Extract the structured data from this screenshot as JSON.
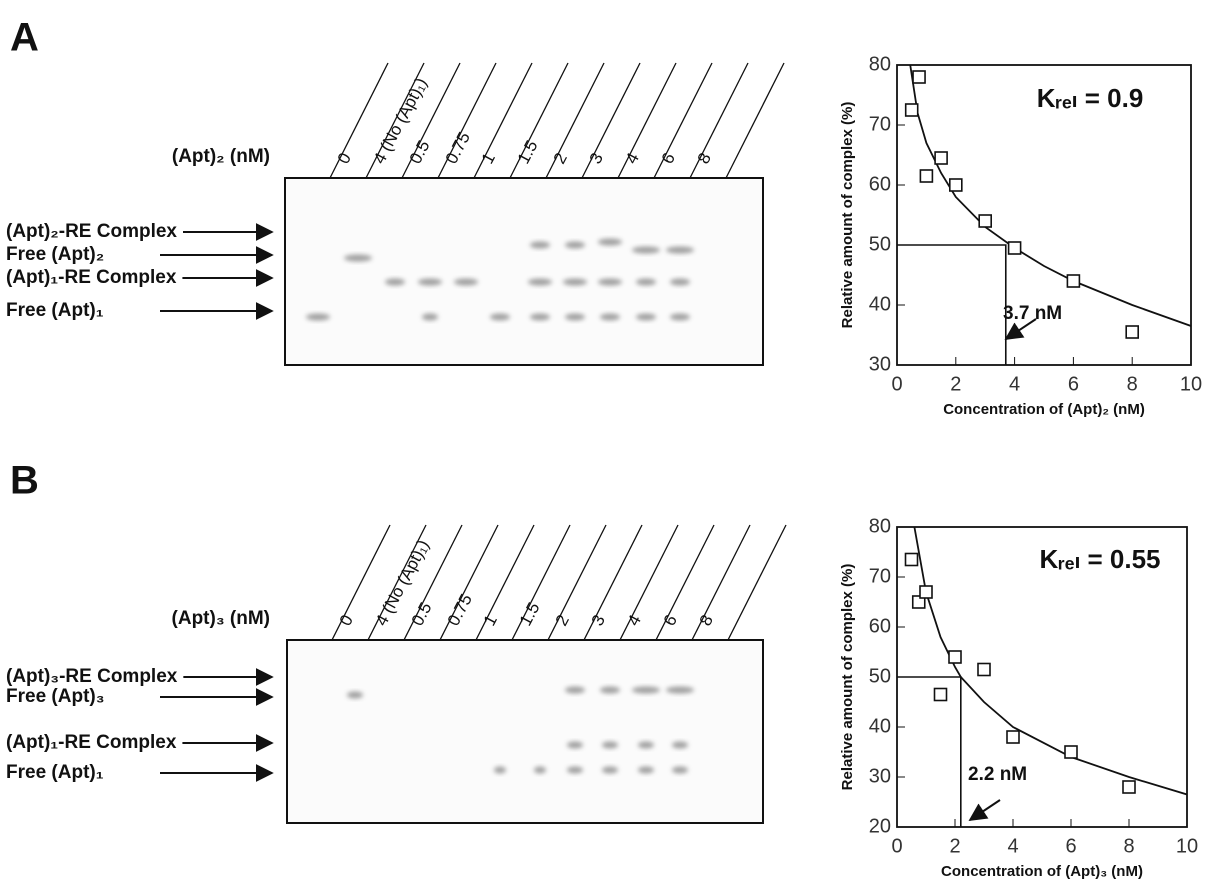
{
  "panel_labels": [
    "A",
    "B"
  ],
  "gels": [
    {
      "axis_label": "(Apt)₂ (nM)",
      "lanes": [
        "0",
        "4 (No (Apt)₁)",
        "0.5",
        "0.75",
        "1",
        "1.5",
        "2",
        "3",
        "4",
        "6",
        "8"
      ],
      "bands": [
        "(Apt)₂-RE Complex",
        "Free (Apt)₂",
        "(Apt)₁-RE Complex",
        "Free (Apt)₁"
      ]
    },
    {
      "axis_label": "(Apt)₃ (nM)",
      "lanes": [
        "0",
        "4 (No (Apt)₁)",
        "0.5",
        "0.75",
        "1",
        "1.5",
        "2",
        "3",
        "4",
        "6",
        "8"
      ],
      "bands": [
        "(Apt)₃-RE Complex",
        "Free (Apt)₃",
        "(Apt)₁-RE Complex",
        "Free (Apt)₁"
      ]
    }
  ],
  "chart_data": [
    {
      "type": "scatter",
      "xlabel": "Concentration of (Apt)₂  (nM)",
      "ylabel": "Relative amount of complex (%)",
      "k_label": "Kᵣₑₗ = 0.9",
      "annotation": "3.7 nM",
      "xlim": [
        0,
        10
      ],
      "ylim": [
        30,
        80
      ],
      "xticks": [
        0,
        2,
        4,
        6,
        8,
        10
      ],
      "yticks": [
        30,
        40,
        50,
        60,
        70,
        80
      ],
      "points": {
        "x": [
          0.5,
          0.75,
          1,
          1.5,
          2,
          3,
          4,
          6,
          8
        ],
        "y": [
          72.5,
          78,
          61.5,
          64.5,
          60,
          54,
          49.5,
          44,
          35.5
        ]
      },
      "fit": {
        "x": [
          0.45,
          0.7,
          1,
          1.5,
          2,
          3,
          4,
          5,
          6,
          8,
          10
        ],
        "y": [
          80,
          72,
          67,
          62,
          58,
          53,
          49.5,
          46.5,
          44,
          40,
          36.5
        ]
      },
      "reference": {
        "x": [
          0,
          3.7,
          3.7
        ],
        "y": [
          50,
          50,
          30
        ]
      }
    },
    {
      "type": "scatter",
      "xlabel": "Concentration of (Apt)₃  (nM)",
      "ylabel": "Relative amount of complex (%)",
      "k_label": "Kᵣₑₗ = 0.55",
      "annotation": "2.2 nM",
      "xlim": [
        0,
        10
      ],
      "ylim": [
        20,
        80
      ],
      "xticks": [
        0,
        2,
        4,
        6,
        8,
        10
      ],
      "yticks": [
        20,
        30,
        40,
        50,
        60,
        70,
        80
      ],
      "points": {
        "x": [
          0.5,
          0.75,
          1,
          1.5,
          2,
          3,
          4,
          6,
          8
        ],
        "y": [
          73.5,
          65,
          67,
          46.5,
          54,
          51.5,
          38,
          35,
          28
        ]
      },
      "fit": {
        "x": [
          0.6,
          1,
          1.5,
          2,
          2.2,
          3,
          4,
          6,
          8,
          10
        ],
        "y": [
          80,
          67,
          58,
          52,
          50,
          45,
          40,
          34,
          30,
          26.5
        ]
      },
      "reference": {
        "x": [
          0,
          2.2,
          2.2
        ],
        "y": [
          50,
          50,
          20
        ]
      }
    }
  ]
}
